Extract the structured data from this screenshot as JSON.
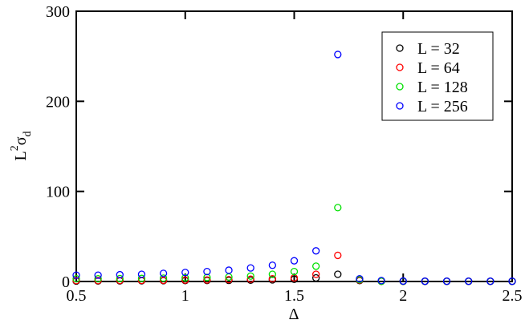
{
  "chart_data": {
    "type": "scatter",
    "xlabel": "Δ",
    "ylabel": [
      "L",
      "2",
      "σ",
      "d"
    ],
    "x": [
      0.5,
      0.6,
      0.7,
      0.8,
      0.9,
      1.0,
      1.1,
      1.2,
      1.3,
      1.4,
      1.5,
      1.6,
      1.7,
      1.8,
      1.9,
      2.0,
      2.1,
      2.2,
      2.3,
      2.4,
      2.5
    ],
    "series": [
      {
        "name": "L = 32",
        "color": "#000000",
        "values": [
          0.5,
          0.6,
          0.7,
          0.8,
          0.9,
          1.0,
          1.1,
          1.2,
          1.5,
          1.8,
          2.5,
          4,
          8,
          1,
          0.3,
          0.2,
          0.2,
          0.2,
          0.2,
          0.2,
          0.2
        ]
      },
      {
        "name": "L = 64",
        "color": "#ff0000",
        "values": [
          1,
          1,
          1.1,
          1.2,
          1.3,
          1.5,
          1.7,
          2,
          2.5,
          3,
          4,
          8,
          29,
          1.5,
          0.3,
          0.2,
          0.2,
          0.2,
          0.2,
          0.2,
          0.2
        ]
      },
      {
        "name": "L = 128",
        "color": "#00e000",
        "values": [
          3,
          3,
          3.2,
          3.4,
          3.7,
          4,
          4.5,
          5,
          6,
          8,
          11,
          17,
          82,
          2,
          0.3,
          0.2,
          0.2,
          0.2,
          0.2,
          0.2,
          0.2
        ]
      },
      {
        "name": "L = 256",
        "color": "#0000ff",
        "values": [
          7,
          7,
          7.5,
          8,
          9,
          10,
          11,
          12.5,
          15,
          18,
          23,
          34,
          252,
          3,
          1,
          0.5,
          0.3,
          0.3,
          0.3,
          0.3,
          0.3
        ]
      }
    ],
    "xlim": [
      0.5,
      2.5
    ],
    "xticks": [
      0.5,
      1,
      1.5,
      2,
      2.5
    ],
    "ylim": [
      0,
      300
    ],
    "yticks": [
      0,
      100,
      200,
      300
    ],
    "legend": "top-right"
  }
}
